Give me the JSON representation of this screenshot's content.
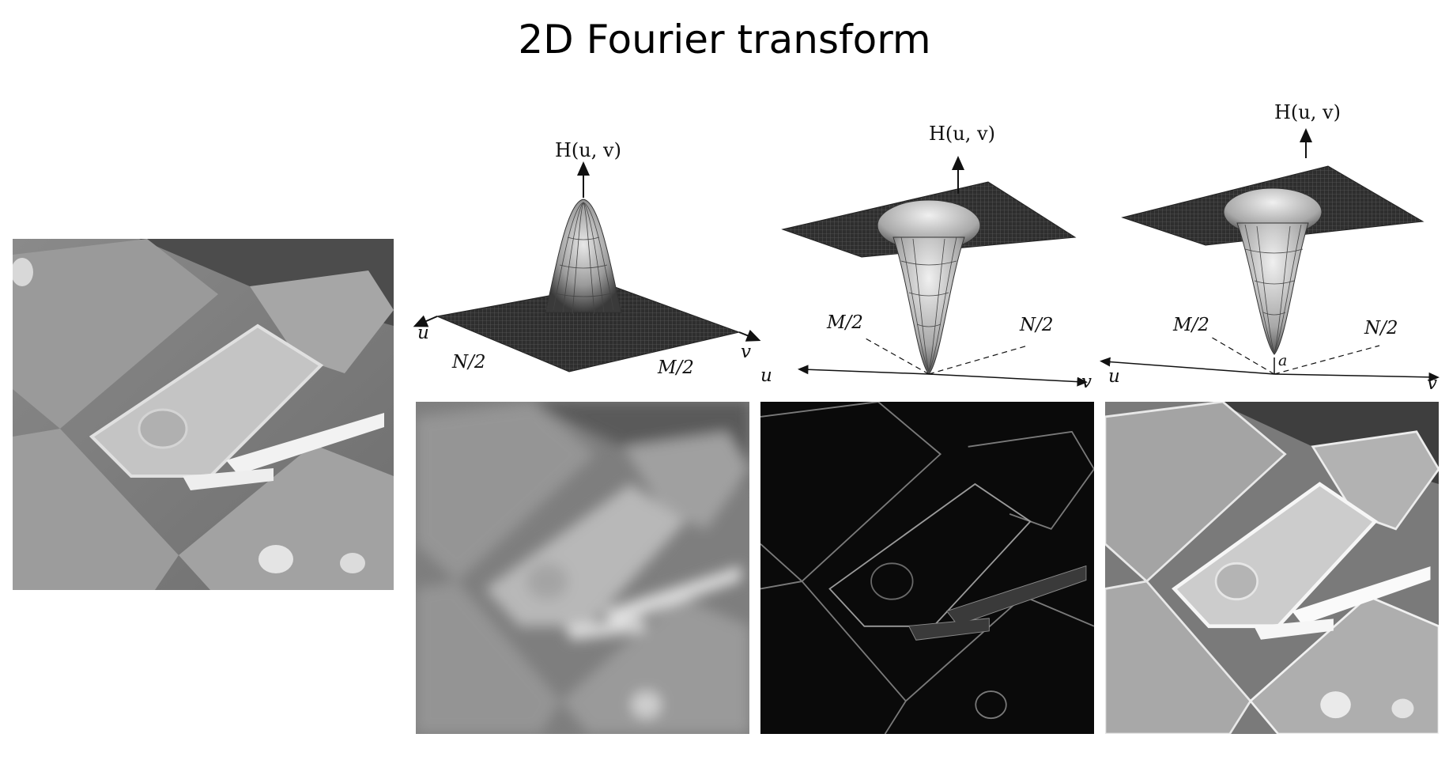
{
  "title": "2D Fourier transform",
  "plots": [
    {
      "name": "lowpass-filter",
      "kind": "peak",
      "h_label": "H(u, v)",
      "u_label": "u",
      "v_label": "v",
      "u_mark": "N/2",
      "v_mark": "M/2",
      "fill": "#2b2b2b",
      "mesh": "#4a4a4a"
    },
    {
      "name": "highpass-filter",
      "kind": "dip",
      "h_label": "H(u, v)",
      "u_label": "u",
      "v_label": "v",
      "u_mark": "M/2",
      "v_mark": "N/2",
      "fill": "#2b2b2b",
      "mesh": "#4a4a4a"
    },
    {
      "name": "high-boost-filter",
      "kind": "dip-offset",
      "h_label": "H(u, v)",
      "u_label": "u",
      "v_label": "v",
      "u_mark": "M/2",
      "v_mark": "N/2",
      "offset_label": "a",
      "fill": "#2b2b2b",
      "mesh": "#4a4a4a"
    }
  ],
  "images": [
    {
      "name": "original-image",
      "tone": "normal"
    },
    {
      "name": "lowpass-result",
      "tone": "blur"
    },
    {
      "name": "highpass-result",
      "tone": "edges"
    },
    {
      "name": "highboost-result",
      "tone": "sharp"
    }
  ]
}
